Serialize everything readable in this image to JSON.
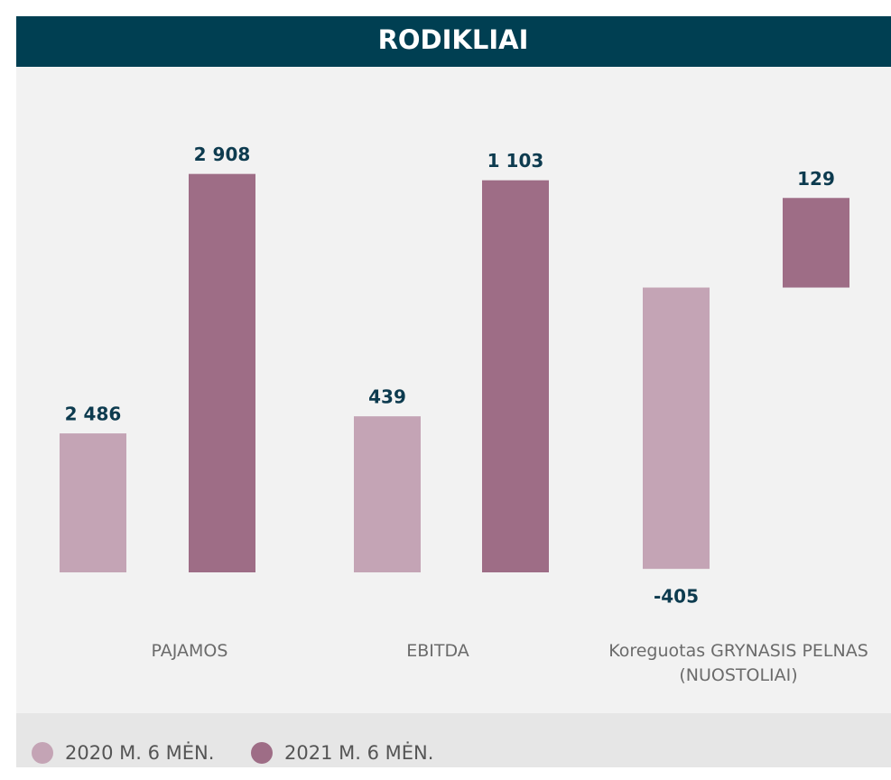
{
  "title": "RODIKLIAI",
  "legend": [
    {
      "name": "2020 M. 6 MĖN.",
      "color": "#c4a4b5"
    },
    {
      "name": "2021 M. 6 MĖN.",
      "color": "#9e6d86"
    }
  ],
  "chart_data": [
    {
      "type": "bar",
      "category": "PAJAMOS",
      "values": [
        2486,
        2908
      ],
      "value_labels": [
        "2 486",
        "2 908"
      ],
      "ylim": [
        2260,
        3000
      ]
    },
    {
      "type": "bar",
      "category": "EBITDA",
      "values": [
        439,
        1103
      ],
      "value_labels": [
        "439",
        "1 103"
      ],
      "ylim": [
        0,
        1280
      ]
    },
    {
      "type": "bar",
      "category": "Koreguotas GRYNASIS PELNAS (NUOSTOLIAI)",
      "values": [
        -405,
        129
      ],
      "value_labels": [
        "-405",
        "129"
      ],
      "ylim": [
        -410,
        245
      ]
    }
  ]
}
